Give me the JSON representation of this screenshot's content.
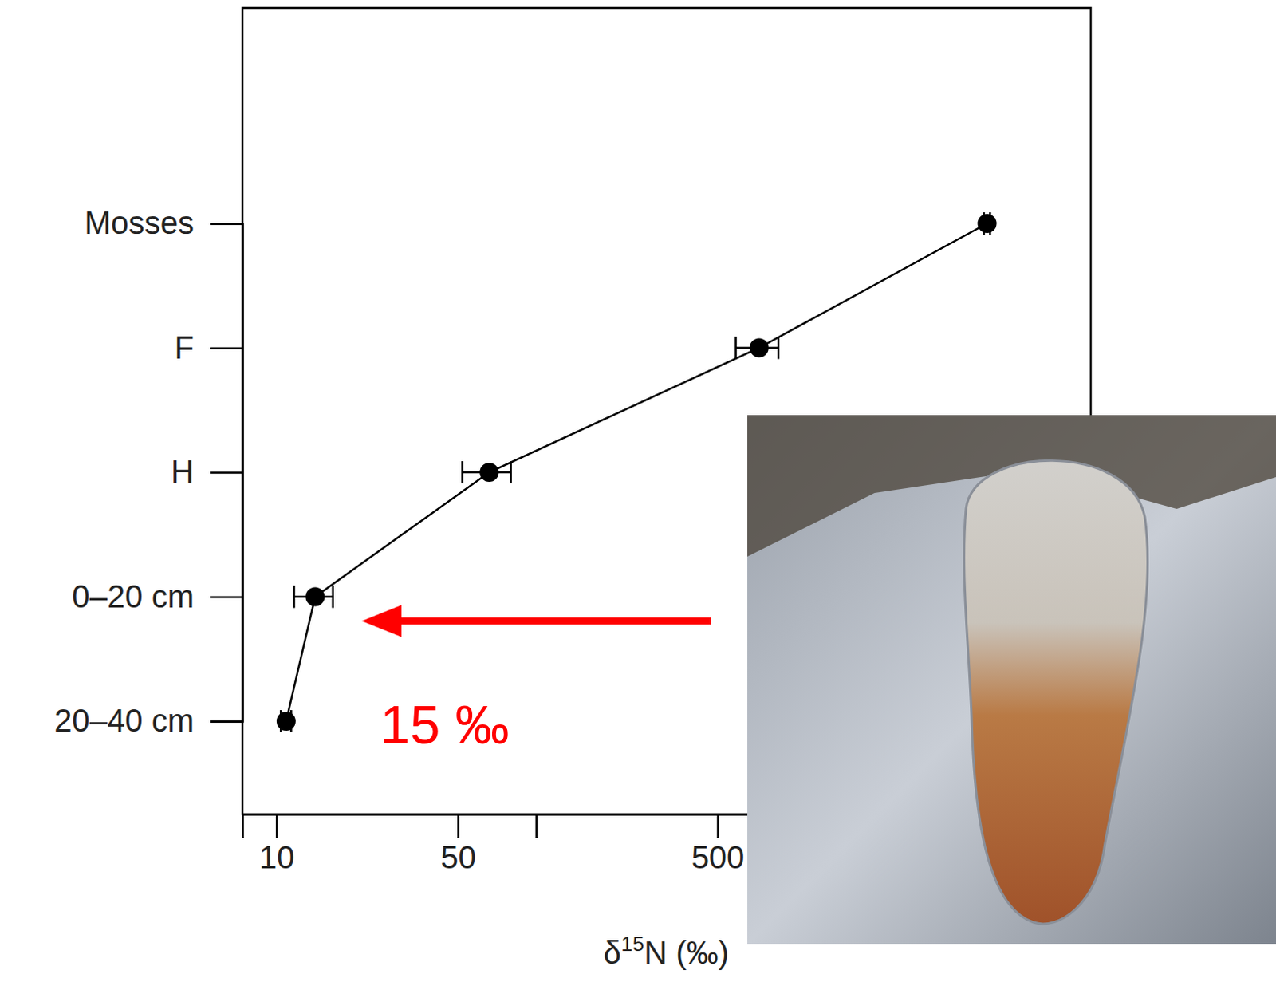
{
  "chart_data": {
    "type": "line",
    "orientation": "horizontal",
    "categories": [
      "Mosses",
      "F",
      "H",
      "0–20 cm",
      "20–40 cm"
    ],
    "values": [
      5460,
      723,
      66,
      14.1,
      10.9
    ],
    "errors": [
      150,
      135,
      14,
      2.4,
      0.5
    ],
    "x_label": "δ15N (‰)",
    "xlim": [
      7.4,
      13700
    ],
    "xticks": [
      10,
      50,
      {
        "value": 100,
        "label": null
      },
      500
    ],
    "log": "x",
    "color": "#000000",
    "marker": "circle",
    "annotations": [
      {
        "text": "15 ‰",
        "color": "#ff0000"
      }
    ]
  }
}
